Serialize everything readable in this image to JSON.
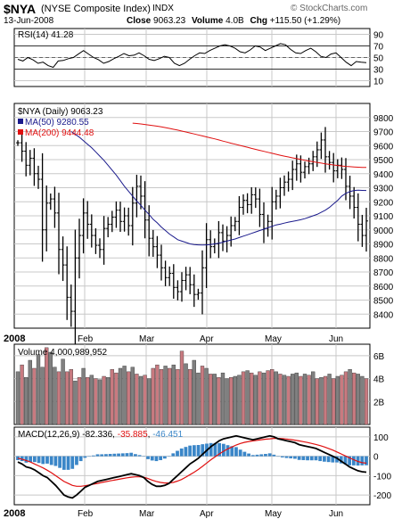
{
  "header": {
    "symbol": "$NYA",
    "name": "(NYSE Composite Index)",
    "exchange": "INDX",
    "date": "13-Jun-2008",
    "close_label": "Close",
    "close": "9063.23",
    "volume_label": "Volume",
    "volume": "4.0B",
    "chg_label": "Chg",
    "chg": "+115.50 (+1.29%)",
    "source": "© StockCharts.com"
  },
  "colors": {
    "up_volume": "#c87a80",
    "down_volume": "#808080",
    "ma50": "#1a1a8c",
    "ma200": "#e01010",
    "macd_hist": "#3a86c8",
    "macd_signal": "#e01010",
    "grid": "#c8c8c8"
  },
  "chart_data": [
    {
      "type": "line",
      "panel": "rsi",
      "label": "RSI(14) 41.28",
      "ylim": [
        0,
        100
      ],
      "ticks": [
        10,
        30,
        50,
        70,
        90
      ],
      "levels": [
        30,
        50,
        70
      ],
      "values": [
        47,
        44,
        50,
        46,
        40,
        42,
        36,
        33,
        44,
        45,
        48,
        50,
        56,
        62,
        56,
        50,
        46,
        40,
        43,
        48,
        52,
        57,
        53,
        54,
        58,
        53,
        47,
        45,
        48,
        52,
        50,
        40,
        36,
        40,
        47,
        53,
        58,
        57,
        62,
        66,
        70,
        72,
        70,
        66,
        60,
        58,
        63,
        70,
        68,
        62,
        66,
        70,
        74,
        72,
        64,
        58,
        57,
        62,
        66,
        60,
        52,
        50,
        56,
        58,
        50,
        42,
        36,
        43,
        42,
        41.28
      ],
      "grid": true
    },
    {
      "type": "ohlc",
      "panel": "price",
      "legend": [
        "$NYA (Daily) 9063.23",
        "MA(50) 9280.55",
        "MA(200) 9444.48"
      ],
      "ylim": [
        8300,
        9900
      ],
      "ticks": [
        8400,
        8500,
        8600,
        8700,
        8800,
        8900,
        9000,
        9100,
        9200,
        9300,
        9400,
        9500,
        9600,
        9700,
        9800
      ],
      "xlabels": [
        "2008",
        "Feb",
        "Mar",
        "Apr",
        "May",
        "Jun"
      ],
      "close": [
        9620,
        9560,
        9460,
        9510,
        9400,
        9360,
        9000,
        9190,
        9220,
        9120,
        8860,
        8750,
        8520,
        8420,
        8800,
        8960,
        9120,
        9040,
        8960,
        8890,
        8860,
        9010,
        9040,
        9090,
        9140,
        9060,
        9100,
        9030,
        9190,
        9310,
        9240,
        9070,
        8940,
        8880,
        8820,
        8730,
        8660,
        8690,
        8590,
        8560,
        8640,
        8680,
        8610,
        8540,
        8550,
        8730,
        8930,
        8880,
        8900,
        8980,
        8920,
        8960,
        9030,
        9060,
        9160,
        9210,
        9180,
        9250,
        9220,
        9110,
        9010,
        9060,
        9200,
        9240,
        9300,
        9340,
        9360,
        9430,
        9470,
        9410,
        9450,
        9470,
        9520,
        9570,
        9640,
        9520,
        9480,
        9420,
        9460,
        9430,
        9310,
        9240,
        9160,
        9040,
        8960,
        9063.23
      ],
      "ma50": [
        9700,
        9680,
        9660,
        9635,
        9610,
        9585,
        9555,
        9525,
        9495,
        9460,
        9425,
        9390,
        9350,
        9310,
        9275,
        9240,
        9205,
        9175,
        9140,
        9110,
        9075,
        9050,
        9020,
        8995,
        8970,
        8950,
        8930,
        8920,
        8910,
        8900,
        8895,
        8893,
        8892,
        8893,
        8895,
        8900,
        8905,
        8912,
        8920,
        8928,
        8935,
        8945,
        8955,
        8965,
        8975,
        8985,
        8995,
        9005,
        9015,
        9025,
        9035,
        9040,
        9048,
        9055,
        9060,
        9066,
        9072,
        9080,
        9090,
        9100,
        9110,
        9125,
        9140,
        9160,
        9185,
        9210,
        9240,
        9260,
        9272,
        9280,
        9282,
        9281,
        9280.55
      ],
      "ma200": [
        9760,
        9757,
        9754,
        9750,
        9746,
        9742,
        9738,
        9733,
        9728,
        9722,
        9716,
        9710,
        9703,
        9697,
        9690,
        9683,
        9676,
        9669,
        9662,
        9655,
        9648,
        9640,
        9632,
        9625,
        9617,
        9610,
        9602,
        9595,
        9588,
        9580,
        9573,
        9566,
        9559,
        9552,
        9545,
        9538,
        9531,
        9525,
        9519,
        9513,
        9507,
        9501,
        9495,
        9490,
        9485,
        9480,
        9475,
        9470,
        9466,
        9462,
        9458,
        9455,
        9452,
        9450,
        9448,
        9446,
        9445,
        9444.48
      ],
      "grid": true
    },
    {
      "type": "bar",
      "panel": "volume",
      "label": "Volume 4,000,989,952",
      "ylim": [
        0,
        7
      ],
      "ticks_label": [
        "2B",
        "4B",
        "6B"
      ],
      "ticks": [
        2,
        4,
        6
      ],
      "values": [
        4.6,
        5.2,
        4.1,
        5.6,
        4.9,
        6.1,
        5.0,
        6.7,
        6.3,
        5.0,
        4.6,
        5.7,
        4.6,
        4.8,
        3.8,
        4.1,
        4.9,
        4.1,
        4.3,
        4.0,
        3.9,
        4.2,
        4.1,
        4.8,
        4.5,
        4.9,
        5.1,
        4.6,
        5.0,
        4.4,
        4.2,
        4.3,
        4.0,
        4.9,
        5.2,
        4.8,
        5.1,
        4.9,
        5.2,
        4.8,
        6.4,
        5.3,
        4.8,
        5.6,
        4.5,
        5.1,
        4.9,
        4.4,
        4.4,
        4.1,
        4.5,
        4.0,
        4.1,
        4.2,
        4.3,
        4.6,
        4.7,
        4.5,
        4.3,
        4.6,
        4.5,
        4.7,
        4.8,
        4.6,
        4.4,
        4.3,
        4.2,
        4.4,
        4.5,
        4.2,
        4.4,
        4.3,
        4.6,
        4.0,
        4.1,
        4.2,
        4.4,
        4.0,
        4.2,
        4.3,
        4.6,
        4.8,
        4.5,
        4.4,
        4.2,
        4.0
      ],
      "up": [
        0,
        1,
        0,
        0,
        1,
        0,
        0,
        1,
        0,
        0,
        1,
        0,
        1,
        1,
        0,
        1,
        0,
        1,
        0,
        1,
        0,
        1,
        0,
        1,
        1,
        0,
        0,
        1,
        0,
        1,
        0,
        1,
        0,
        1,
        1,
        1,
        0,
        1,
        0,
        1,
        1,
        0,
        1,
        0,
        0,
        1,
        0,
        1,
        0,
        1,
        0,
        0,
        1,
        0,
        0,
        1,
        0,
        1,
        0,
        1,
        0,
        1,
        1,
        0,
        1,
        0,
        1,
        0,
        0,
        1,
        0,
        1,
        0,
        1,
        0,
        1,
        0,
        1,
        0,
        1,
        1,
        0,
        1,
        0,
        0,
        1
      ],
      "grid": true
    },
    {
      "type": "line",
      "panel": "macd",
      "label_prefix": "MACD(12,26,9)",
      "macd_value": "-82.336",
      "signal_value": "-35.885",
      "hist_value": "-46.451",
      "ylim": [
        -250,
        150
      ],
      "ticks": [
        -200,
        -100,
        0,
        100
      ],
      "macd": [
        -30,
        -40,
        -55,
        -60,
        -70,
        -85,
        -100,
        -110,
        -130,
        -150,
        -175,
        -200,
        -210,
        -215,
        -200,
        -180,
        -160,
        -150,
        -140,
        -130,
        -125,
        -120,
        -115,
        -110,
        -105,
        -100,
        -95,
        -90,
        -95,
        -100,
        -110,
        -130,
        -145,
        -155,
        -155,
        -150,
        -140,
        -120,
        -100,
        -80,
        -60,
        -40,
        -25,
        -10,
        10,
        30,
        50,
        65,
        80,
        90,
        95,
        100,
        105,
        100,
        95,
        90,
        85,
        90,
        95,
        100,
        105,
        100,
        90,
        85,
        80,
        75,
        70,
        60,
        55,
        50,
        45,
        40,
        30,
        20,
        10,
        0,
        -10,
        -25,
        -40,
        -55,
        -65,
        -75,
        -80,
        -82.336
      ],
      "signal": [
        -10,
        -15,
        -22,
        -30,
        -40,
        -50,
        -60,
        -72,
        -85,
        -100,
        -115,
        -130,
        -140,
        -150,
        -155,
        -155,
        -152,
        -148,
        -144,
        -140,
        -135,
        -131,
        -127,
        -123,
        -119,
        -115,
        -111,
        -108,
        -106,
        -106,
        -108,
        -115,
        -123,
        -130,
        -135,
        -138,
        -138,
        -135,
        -128,
        -120,
        -108,
        -95,
        -82,
        -68,
        -52,
        -35,
        -18,
        -3,
        12,
        26,
        38,
        48,
        58,
        66,
        72,
        76,
        79,
        82,
        85,
        88,
        90,
        92,
        92,
        91,
        89,
        86,
        83,
        79,
        75,
        71,
        66,
        61,
        55,
        48,
        40,
        32,
        22,
        12,
        2,
        -8,
        -18,
        -27,
        -33,
        -35.885
      ],
      "hist": [
        -20,
        -25,
        -33,
        -30,
        -30,
        -35,
        -40,
        -38,
        -45,
        -50,
        -60,
        -70,
        -70,
        -65,
        -45,
        -25,
        -8,
        -2,
        4,
        10,
        10,
        11,
        12,
        13,
        14,
        15,
        16,
        18,
        11,
        6,
        -2,
        -15,
        -22,
        -25,
        -20,
        -12,
        -2,
        15,
        28,
        40,
        48,
        55,
        57,
        58,
        62,
        65,
        68,
        68,
        68,
        64,
        57,
        52,
        47,
        34,
        23,
        14,
        6,
        8,
        10,
        12,
        15,
        8,
        -2,
        -6,
        -9,
        -11,
        -13,
        -19,
        -20,
        -21,
        -21,
        -21,
        -25,
        -28,
        -30,
        -32,
        -32,
        -37,
        -42,
        -47,
        -47,
        -48,
        -47,
        -46.451
      ],
      "xlabels": [
        "2008",
        "Feb",
        "Mar",
        "Apr",
        "May",
        "Jun"
      ],
      "grid": true
    }
  ]
}
